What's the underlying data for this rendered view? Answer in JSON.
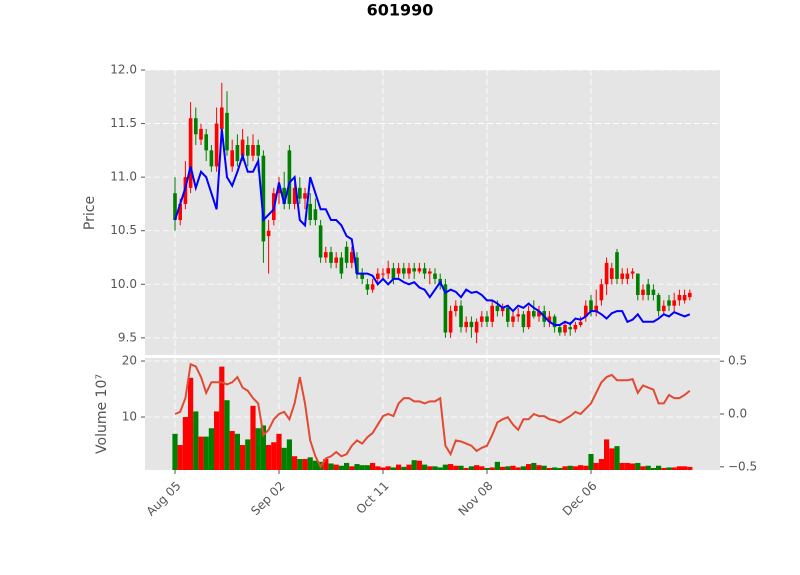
{
  "chart_data": {
    "type": "candlestick",
    "title": "601990",
    "categories": [
      "Aug 05",
      null,
      null,
      null,
      null,
      null,
      null,
      null,
      null,
      null,
      null,
      null,
      null,
      null,
      null,
      null,
      null,
      null,
      null,
      null,
      "Sep 02",
      null,
      null,
      null,
      null,
      null,
      null,
      null,
      null,
      null,
      null,
      null,
      null,
      null,
      null,
      null,
      null,
      null,
      null,
      null,
      "Oct 11",
      null,
      null,
      null,
      null,
      null,
      null,
      null,
      null,
      null,
      null,
      null,
      null,
      null,
      null,
      null,
      null,
      null,
      null,
      null,
      "Nov 08",
      null,
      null,
      null,
      null,
      null,
      null,
      null,
      null,
      null,
      null,
      null,
      null,
      null,
      null,
      null,
      null,
      null,
      null,
      null,
      "Dec 06",
      null,
      null,
      null,
      null,
      null,
      null,
      null,
      null,
      null,
      null,
      null,
      null,
      null,
      null,
      null,
      null,
      null,
      null,
      null
    ],
    "open": [
      10.85,
      10.6,
      10.75,
      10.9,
      11.55,
      11.35,
      11.4,
      11.25,
      11.1,
      11.45,
      11.6,
      11.1,
      11.3,
      11.2,
      11.3,
      11.2,
      11.3,
      11.2,
      10.45,
      10.6,
      10.85,
      10.9,
      11.25,
      10.75,
      10.9,
      10.8,
      10.75,
      10.7,
      10.55,
      10.25,
      10.3,
      10.2,
      10.25,
      10.35,
      10.2,
      10.25,
      10.1,
      10.0,
      9.95,
      10.05,
      10.1,
      10.1,
      10.15,
      10.1,
      10.15,
      10.1,
      10.15,
      10.12,
      10.15,
      10.1,
      10.1,
      10.05,
      10.0,
      9.55,
      9.75,
      9.8,
      9.6,
      9.65,
      9.55,
      9.65,
      9.7,
      9.65,
      9.8,
      9.75,
      9.78,
      9.65,
      9.7,
      9.72,
      9.6,
      9.75,
      9.7,
      9.75,
      9.65,
      9.7,
      9.6,
      9.55,
      9.6,
      9.58,
      9.62,
      9.7,
      9.85,
      9.75,
      9.85,
      10.0,
      10.05,
      10.3,
      10.05,
      10.05,
      10.1,
      10.1,
      9.9,
      10.0,
      9.95,
      9.9,
      9.75,
      9.85,
      9.8,
      9.85,
      9.85,
      9.88
    ],
    "high": [
      11.0,
      10.8,
      11.15,
      11.7,
      11.65,
      11.5,
      11.45,
      11.3,
      11.65,
      11.88,
      11.8,
      11.35,
      11.4,
      11.45,
      11.38,
      11.4,
      11.35,
      11.25,
      10.6,
      10.9,
      11.0,
      11.05,
      11.3,
      10.95,
      11.0,
      10.9,
      10.85,
      10.8,
      10.6,
      10.35,
      10.35,
      10.3,
      10.3,
      10.4,
      10.35,
      10.3,
      10.15,
      10.05,
      10.05,
      10.15,
      10.15,
      10.22,
      10.2,
      10.2,
      10.2,
      10.2,
      10.2,
      10.2,
      10.2,
      10.15,
      10.15,
      10.1,
      10.05,
      9.8,
      9.85,
      9.85,
      9.7,
      9.7,
      9.68,
      9.75,
      9.75,
      9.85,
      9.85,
      9.82,
      9.8,
      9.75,
      9.78,
      9.75,
      9.8,
      9.85,
      9.8,
      9.8,
      9.75,
      9.72,
      9.62,
      9.65,
      9.65,
      9.65,
      9.7,
      9.85,
      9.9,
      9.95,
      10.05,
      10.25,
      10.2,
      10.33,
      10.15,
      10.15,
      10.15,
      10.1,
      10.0,
      10.05,
      10.0,
      9.92,
      9.85,
      9.9,
      9.92,
      9.95,
      9.95,
      9.95
    ],
    "low": [
      10.5,
      10.55,
      10.7,
      10.85,
      11.3,
      11.3,
      11.15,
      11.05,
      11.05,
      11.4,
      11.2,
      11.05,
      11.1,
      11.15,
      11.1,
      11.15,
      11.05,
      10.2,
      10.1,
      10.55,
      10.75,
      10.7,
      10.7,
      10.7,
      10.75,
      10.7,
      10.55,
      10.55,
      10.2,
      10.2,
      10.15,
      10.15,
      10.05,
      10.15,
      10.15,
      10.05,
      10.0,
      9.9,
      9.92,
      10.0,
      10.05,
      10.05,
      10.0,
      10.05,
      10.05,
      10.05,
      10.05,
      10.1,
      10.05,
      10.0,
      10.0,
      9.95,
      9.5,
      9.5,
      9.7,
      9.55,
      9.55,
      9.5,
      9.45,
      9.6,
      9.6,
      9.6,
      9.7,
      9.7,
      9.6,
      9.6,
      9.65,
      9.55,
      9.58,
      9.68,
      9.65,
      9.6,
      9.6,
      9.55,
      9.52,
      9.52,
      9.52,
      9.55,
      9.6,
      9.65,
      9.7,
      9.7,
      9.8,
      9.9,
      10.0,
      10.0,
      10.0,
      10.0,
      10.05,
      9.85,
      9.85,
      9.85,
      9.85,
      9.7,
      9.72,
      9.75,
      9.75,
      9.8,
      9.82,
      9.85
    ],
    "close": [
      10.6,
      10.75,
      11.0,
      11.55,
      11.4,
      11.45,
      11.25,
      11.1,
      11.5,
      11.65,
      11.25,
      11.25,
      11.15,
      11.35,
      11.2,
      11.3,
      11.2,
      10.4,
      10.5,
      10.85,
      10.9,
      10.75,
      10.75,
      10.9,
      10.8,
      10.85,
      10.6,
      10.6,
      10.25,
      10.3,
      10.2,
      10.25,
      10.1,
      10.2,
      10.3,
      10.1,
      10.05,
      9.95,
      10.0,
      10.1,
      10.1,
      10.15,
      10.05,
      10.15,
      10.1,
      10.15,
      10.12,
      10.15,
      10.1,
      10.12,
      10.05,
      10.0,
      9.55,
      9.75,
      9.8,
      9.6,
      9.65,
      9.6,
      9.65,
      9.7,
      9.65,
      9.8,
      9.75,
      9.78,
      9.65,
      9.7,
      9.72,
      9.6,
      9.75,
      9.7,
      9.75,
      9.65,
      9.7,
      9.6,
      9.55,
      9.62,
      9.58,
      9.62,
      9.65,
      9.8,
      9.75,
      9.8,
      10.0,
      10.2,
      10.15,
      10.05,
      10.1,
      10.1,
      10.12,
      9.9,
      9.95,
      9.9,
      9.9,
      9.75,
      9.8,
      9.8,
      9.85,
      9.9,
      9.9,
      9.92
    ],
    "up_color": "#ff0000",
    "down_color": "#008000",
    "ma": {
      "color": "#0000ff",
      "values": [
        10.6,
        10.75,
        10.9,
        11.1,
        10.9,
        11.05,
        11.0,
        10.85,
        10.7,
        11.45,
        11.0,
        10.92,
        11.05,
        11.2,
        11.05,
        11.05,
        11.15,
        10.6,
        10.65,
        10.7,
        10.95,
        10.75,
        10.95,
        11.0,
        10.6,
        10.55,
        11.0,
        10.85,
        10.7,
        10.7,
        10.6,
        10.6,
        10.55,
        10.45,
        10.42,
        10.1,
        10.1,
        10.1,
        10.08,
        10.0,
        10.05,
        10.0,
        10.05,
        10.05,
        10.02,
        10.0,
        10.02,
        9.97,
        9.95,
        9.88,
        9.95,
        10.02,
        9.92,
        9.95,
        9.93,
        9.88,
        9.95,
        9.92,
        9.93,
        9.9,
        9.85,
        9.85,
        9.82,
        9.78,
        9.8,
        9.75,
        9.8,
        9.78,
        9.82,
        9.78,
        9.75,
        9.7,
        9.65,
        9.62,
        9.62,
        9.65,
        9.63,
        9.68,
        9.67,
        9.7,
        9.75,
        9.75,
        9.72,
        9.68,
        9.73,
        9.75,
        9.75,
        9.65,
        9.67,
        9.72,
        9.65,
        9.65,
        9.65,
        9.68,
        9.72,
        9.7,
        9.74,
        9.72,
        9.7,
        9.72
      ]
    },
    "ylabel": "Price",
    "ylim": [
      9.34,
      12.0
    ],
    "yticks": [
      9.5,
      {
        "value": 10,
        "label": "10.0"
      },
      10.5,
      {
        "value": 11,
        "label": "11.0"
      },
      11.5,
      {
        "value": 12,
        "label": "12.0"
      }
    ],
    "volume": {
      "ylabel": "Volume  10⁷",
      "ylim": [
        0.54,
        20.54
      ],
      "yticks": [
        10,
        20
      ],
      "values": [
        7,
        5,
        10,
        17,
        11,
        6.5,
        6.5,
        8,
        11,
        19,
        13,
        7.5,
        7,
        5,
        6,
        12,
        8,
        8.5,
        5,
        5.5,
        7,
        4.5,
        6,
        3,
        2.5,
        2.5,
        2.8,
        2.2,
        2,
        2.5,
        1.7,
        1.5,
        1.3,
        1.8,
        1.2,
        1.6,
        1.4,
        1.4,
        1.8,
        1.2,
        1.0,
        1.2,
        1.0,
        1.5,
        1.1,
        1.5,
        2.3,
        2.2,
        1.5,
        1.2,
        1.2,
        1.0,
        1.5,
        1.6,
        1.3,
        1.3,
        0.9,
        1.2,
        1.4,
        1.2,
        0.9,
        1.0,
        2.0,
        1.1,
        1.2,
        1.3,
        1.0,
        1.2,
        1.6,
        1.8,
        1.4,
        1.3,
        0.9,
        1.0,
        0.9,
        1.2,
        1.3,
        1.2,
        1.4,
        1.3,
        3.4,
        1.8,
        2.5,
        6,
        4.4,
        4.8,
        1.8,
        1.8,
        1.7,
        1.8,
        1.2,
        1.3,
        0.9,
        1.3,
        0.9,
        1.0,
        1.0,
        1.2,
        1.2,
        1.1
      ]
    },
    "indicator": {
      "color": "#e24a33",
      "axis": "y2",
      "values": [
        0.0,
        0.02,
        0.15,
        0.47,
        0.45,
        0.35,
        0.2,
        0.3,
        0.3,
        0.3,
        0.28,
        0.3,
        0.35,
        0.25,
        0.22,
        0.15,
        0.1,
        -0.2,
        -0.15,
        -0.05,
        0.0,
        0.02,
        -0.05,
        0.1,
        0.35,
        0.1,
        -0.25,
        -0.4,
        -0.5,
        -0.42,
        -0.4,
        -0.36,
        -0.4,
        -0.38,
        -0.3,
        -0.25,
        -0.28,
        -0.22,
        -0.18,
        -0.1,
        -0.02,
        0.0,
        -0.02,
        0.1,
        0.15,
        0.15,
        0.12,
        0.12,
        0.1,
        0.12,
        0.12,
        0.15,
        -0.3,
        -0.38,
        -0.25,
        -0.26,
        -0.28,
        -0.3,
        -0.35,
        -0.32,
        -0.3,
        -0.2,
        -0.08,
        -0.05,
        -0.03,
        -0.1,
        -0.15,
        -0.05,
        -0.05,
        0.0,
        -0.02,
        -0.02,
        -0.05,
        -0.06,
        -0.08,
        -0.05,
        -0.02,
        0.02,
        0.0,
        0.05,
        0.1,
        0.2,
        0.3,
        0.35,
        0.37,
        0.32,
        0.32,
        0.32,
        0.33,
        0.2,
        0.27,
        0.25,
        0.23,
        0.1,
        0.1,
        0.18,
        0.15,
        0.15,
        0.18,
        0.22
      ]
    },
    "y2lim": [
      -0.53,
      0.53
    ],
    "y2ticks": [
      {
        "value": -0.5,
        "label": "−0.5"
      },
      {
        "value": 0,
        "label": "0.0"
      },
      0.5
    ],
    "grid": true
  }
}
